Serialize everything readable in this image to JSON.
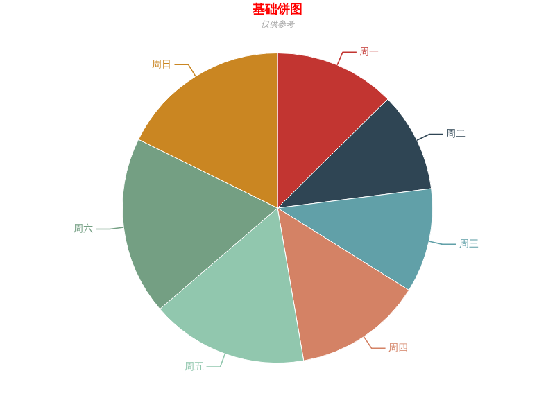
{
  "chart_data": {
    "type": "pie",
    "title": "基础饼图",
    "subtitle": "仅供参考",
    "categories": [
      "周一",
      "周二",
      "周三",
      "周四",
      "周五",
      "周六",
      "周日"
    ],
    "values": [
      12.6,
      10.4,
      10.9,
      13.4,
      16.4,
      18.6,
      17.7
    ],
    "colors": [
      "#c23531",
      "#2f4554",
      "#61a0a8",
      "#d48265",
      "#91c7ae",
      "#749f83",
      "#ca8622"
    ],
    "legend": false
  }
}
